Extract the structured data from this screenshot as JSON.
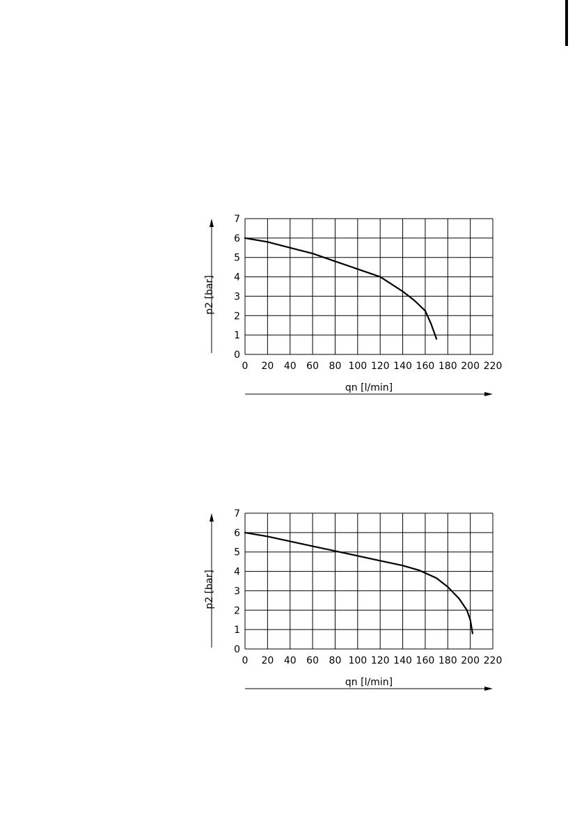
{
  "chart_data": [
    {
      "type": "line",
      "title": "",
      "xlabel": "qn [l/min]",
      "ylabel": "p2 [bar]",
      "xlim": [
        0,
        220
      ],
      "ylim": [
        0,
        7
      ],
      "x_ticks": [
        0,
        20,
        40,
        60,
        80,
        100,
        120,
        140,
        160,
        180,
        200,
        220
      ],
      "y_ticks": [
        0,
        1,
        2,
        3,
        4,
        5,
        6,
        7
      ],
      "grid": true,
      "series": [
        {
          "x": [
            0,
            20,
            40,
            60,
            80,
            100,
            120,
            140,
            150,
            160,
            165,
            170
          ],
          "y": [
            6.0,
            5.8,
            5.5,
            5.2,
            4.8,
            4.4,
            4.0,
            3.25,
            2.8,
            2.25,
            1.6,
            0.8
          ]
        }
      ]
    },
    {
      "type": "line",
      "title": "",
      "xlabel": "qn [l/min]",
      "ylabel": "p2 [bar]",
      "xlim": [
        0,
        220
      ],
      "ylim": [
        0,
        7
      ],
      "x_ticks": [
        0,
        20,
        40,
        60,
        80,
        100,
        120,
        140,
        160,
        180,
        200,
        220
      ],
      "y_ticks": [
        0,
        1,
        2,
        3,
        4,
        5,
        6,
        7
      ],
      "grid": true,
      "series": [
        {
          "x": [
            0,
            20,
            40,
            60,
            80,
            100,
            120,
            140,
            155,
            170,
            180,
            190,
            197,
            200,
            202
          ],
          "y": [
            6.0,
            5.8,
            5.55,
            5.3,
            5.05,
            4.8,
            4.55,
            4.3,
            4.05,
            3.65,
            3.2,
            2.6,
            2.0,
            1.5,
            0.8
          ]
        }
      ]
    }
  ]
}
